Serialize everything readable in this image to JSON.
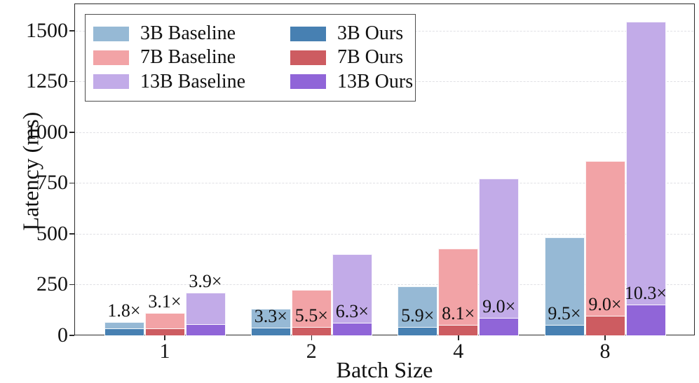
{
  "chart_data": {
    "type": "bar",
    "title": "",
    "xlabel": "Batch Size",
    "ylabel": "Latency (ms)",
    "categories": [
      "1",
      "2",
      "4",
      "8"
    ],
    "y_ticks": [
      0,
      250,
      500,
      750,
      1000,
      1250,
      1500
    ],
    "ylim": [
      0,
      1634
    ],
    "grid": "horizontal-dashed",
    "legend_position": "upper-left",
    "series": [
      {
        "name": "3B Baseline",
        "role": "baseline",
        "model": "3B",
        "color": "#96b9d5",
        "values": [
          65,
          130,
          243,
          484
        ]
      },
      {
        "name": "7B Baseline",
        "role": "baseline",
        "model": "7B",
        "color": "#f2a3a6",
        "values": [
          110,
          224,
          429,
          859
        ]
      },
      {
        "name": "13B Baseline",
        "role": "baseline",
        "model": "13B",
        "color": "#c2abe8",
        "values": [
          210,
          401,
          772,
          1544
        ]
      },
      {
        "name": "3B Ours",
        "role": "ours",
        "model": "3B",
        "color": "#4780b2",
        "values": [
          36,
          39,
          41,
          51
        ]
      },
      {
        "name": "7B Ours",
        "role": "ours",
        "model": "7B",
        "color": "#cd5c61",
        "values": [
          35,
          41,
          53,
          95
        ]
      },
      {
        "name": "13B Ours",
        "role": "ours",
        "model": "13B",
        "color": "#9065d8",
        "values": [
          54,
          63,
          86,
          150
        ]
      }
    ],
    "speedup_annotations": [
      {
        "category": "1",
        "labels": [
          "1.8×",
          "3.1×",
          "3.9×"
        ],
        "anchor": "baseline"
      },
      {
        "category": "2",
        "labels": [
          "3.3×",
          "5.5×",
          "6.3×"
        ],
        "anchor": "ours"
      },
      {
        "category": "4",
        "labels": [
          "5.9×",
          "8.1×",
          "9.0×"
        ],
        "anchor": "ours"
      },
      {
        "category": "8",
        "labels": [
          "9.5×",
          "9.0×",
          "10.3×"
        ],
        "anchor": "ours"
      }
    ]
  }
}
